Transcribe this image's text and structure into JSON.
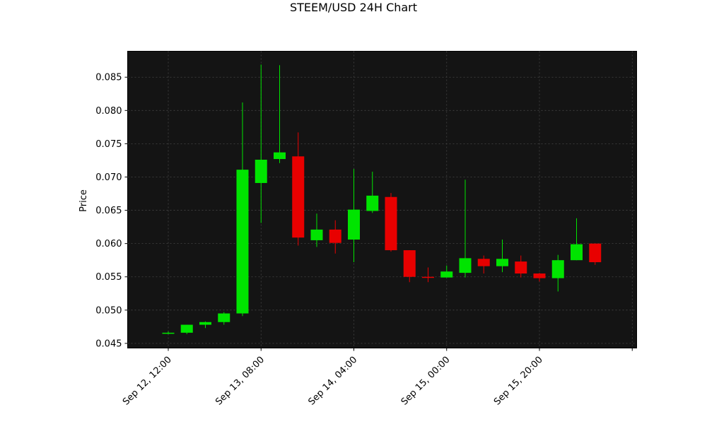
{
  "chart_data": {
    "type": "candlestick",
    "title": "STEEM/USD 24H Chart",
    "xlabel": "",
    "ylabel": "Price",
    "ylim": [
      0.0443,
      0.0889
    ],
    "y_ticks": [
      "0.045",
      "0.050",
      "0.055",
      "0.060",
      "0.065",
      "0.070",
      "0.075",
      "0.080",
      "0.085"
    ],
    "x_ticks": [
      "Sep 12, 12:00",
      "Sep 13, 08:00",
      "Sep 14, 04:00",
      "Sep 15, 00:00",
      "Sep 15, 20:00"
    ],
    "grid": true,
    "colors": {
      "background": "#141414",
      "up": "#00e400",
      "down": "#e80000",
      "grid": "#444444"
    },
    "candles": [
      {
        "time": "Sep 12, 12:00",
        "open": 0.0465,
        "high": 0.0468,
        "low": 0.0464,
        "close": 0.0466
      },
      {
        "time": "Sep 12, 16:00",
        "open": 0.0466,
        "high": 0.0478,
        "low": 0.0464,
        "close": 0.0478
      },
      {
        "time": "Sep 12, 20:00",
        "open": 0.0478,
        "high": 0.0483,
        "low": 0.0473,
        "close": 0.0482
      },
      {
        "time": "Sep 13, 00:00",
        "open": 0.0482,
        "high": 0.0497,
        "low": 0.0478,
        "close": 0.0495
      },
      {
        "time": "Sep 13, 04:00",
        "open": 0.0495,
        "high": 0.0812,
        "low": 0.0491,
        "close": 0.0711
      },
      {
        "time": "Sep 13, 08:00",
        "open": 0.0691,
        "high": 0.0869,
        "low": 0.0631,
        "close": 0.0726
      },
      {
        "time": "Sep 13, 12:00",
        "open": 0.0727,
        "high": 0.0868,
        "low": 0.0721,
        "close": 0.0737
      },
      {
        "time": "Sep 13, 16:00",
        "open": 0.0731,
        "high": 0.0767,
        "low": 0.0597,
        "close": 0.0609
      },
      {
        "time": "Sep 13, 20:00",
        "open": 0.0605,
        "high": 0.0645,
        "low": 0.0595,
        "close": 0.0621
      },
      {
        "time": "Sep 14, 00:00",
        "open": 0.0621,
        "high": 0.0635,
        "low": 0.0585,
        "close": 0.0601
      },
      {
        "time": "Sep 14, 04:00",
        "open": 0.0606,
        "high": 0.0712,
        "low": 0.0572,
        "close": 0.0651
      },
      {
        "time": "Sep 14, 08:00",
        "open": 0.0649,
        "high": 0.0708,
        "low": 0.0646,
        "close": 0.0672
      },
      {
        "time": "Sep 14, 12:00",
        "open": 0.067,
        "high": 0.0676,
        "low": 0.0588,
        "close": 0.059
      },
      {
        "time": "Sep 14, 16:00",
        "open": 0.059,
        "high": 0.059,
        "low": 0.0542,
        "close": 0.055
      },
      {
        "time": "Sep 14, 20:00",
        "open": 0.055,
        "high": 0.0564,
        "low": 0.0542,
        "close": 0.0549
      },
      {
        "time": "Sep 15, 00:00",
        "open": 0.0549,
        "high": 0.0567,
        "low": 0.0549,
        "close": 0.0558
      },
      {
        "time": "Sep 15, 04:00",
        "open": 0.0556,
        "high": 0.0696,
        "low": 0.0549,
        "close": 0.0578
      },
      {
        "time": "Sep 15, 08:00",
        "open": 0.0577,
        "high": 0.0582,
        "low": 0.0555,
        "close": 0.0566
      },
      {
        "time": "Sep 15, 12:00",
        "open": 0.0566,
        "high": 0.0606,
        "low": 0.0557,
        "close": 0.0577
      },
      {
        "time": "Sep 15, 16:00",
        "open": 0.0573,
        "high": 0.0582,
        "low": 0.0549,
        "close": 0.0555
      },
      {
        "time": "Sep 15, 20:00",
        "open": 0.0555,
        "high": 0.0556,
        "low": 0.0543,
        "close": 0.0548
      },
      {
        "time": "Sep 16, 00:00",
        "open": 0.0548,
        "high": 0.0583,
        "low": 0.0528,
        "close": 0.0575
      },
      {
        "time": "Sep 16, 04:00",
        "open": 0.0575,
        "high": 0.0638,
        "low": 0.0575,
        "close": 0.0599
      },
      {
        "time": "Sep 16, 08:00",
        "open": 0.06,
        "high": 0.06,
        "low": 0.0568,
        "close": 0.0572
      }
    ]
  }
}
